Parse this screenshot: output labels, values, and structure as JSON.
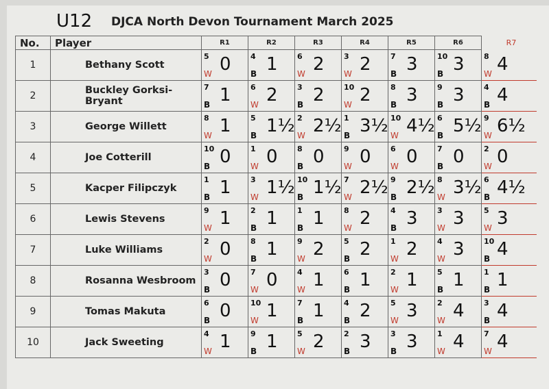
{
  "header": {
    "group": "U12",
    "title": "DJCA North Devon Tournament March 2025"
  },
  "columns": {
    "no": "No.",
    "player": "Player",
    "rounds": [
      "R1",
      "R2",
      "R3",
      "R4",
      "R5",
      "R6",
      "R7"
    ]
  },
  "players": [
    {
      "no": "1",
      "name": "Bethany Scott",
      "results": [
        {
          "opp": "5",
          "col": "W",
          "score": "0"
        },
        {
          "opp": "4",
          "col": "B",
          "score": "1"
        },
        {
          "opp": "6",
          "col": "W",
          "score": "2"
        },
        {
          "opp": "3",
          "col": "W",
          "score": "2"
        },
        {
          "opp": "7",
          "col": "B",
          "score": "3"
        },
        {
          "opp": "10",
          "col": "B",
          "score": "3"
        },
        {
          "opp": "8",
          "col": "W",
          "score": "4"
        }
      ]
    },
    {
      "no": "2",
      "name": "Buckley Gorksi-Bryant",
      "results": [
        {
          "opp": "7",
          "col": "B",
          "score": "1"
        },
        {
          "opp": "6",
          "col": "W",
          "score": "2"
        },
        {
          "opp": "3",
          "col": "B",
          "score": "2"
        },
        {
          "opp": "10",
          "col": "W",
          "score": "2"
        },
        {
          "opp": "8",
          "col": "B",
          "score": "3"
        },
        {
          "opp": "9",
          "col": "B",
          "score": "3"
        },
        {
          "opp": "4",
          "col": "B",
          "score": "4"
        }
      ]
    },
    {
      "no": "3",
      "name": "George Willett",
      "results": [
        {
          "opp": "8",
          "col": "W",
          "score": "1"
        },
        {
          "opp": "5",
          "col": "B",
          "score": "1½"
        },
        {
          "opp": "2",
          "col": "W",
          "score": "2½"
        },
        {
          "opp": "1",
          "col": "B",
          "score": "3½"
        },
        {
          "opp": "10",
          "col": "W",
          "score": "4½"
        },
        {
          "opp": "6",
          "col": "B",
          "score": "5½"
        },
        {
          "opp": "9",
          "col": "W",
          "score": "6½"
        }
      ]
    },
    {
      "no": "4",
      "name": "Joe Cotterill",
      "results": [
        {
          "opp": "10",
          "col": "B",
          "score": "0"
        },
        {
          "opp": "1",
          "col": "W",
          "score": "0"
        },
        {
          "opp": "8",
          "col": "B",
          "score": "0"
        },
        {
          "opp": "9",
          "col": "W",
          "score": "0"
        },
        {
          "opp": "6",
          "col": "W",
          "score": "0"
        },
        {
          "opp": "7",
          "col": "B",
          "score": "0"
        },
        {
          "opp": "2",
          "col": "W",
          "score": "0"
        }
      ]
    },
    {
      "no": "5",
      "name": "Kacper Filipczyk",
      "results": [
        {
          "opp": "1",
          "col": "B",
          "score": "1"
        },
        {
          "opp": "3",
          "col": "W",
          "score": "1½"
        },
        {
          "opp": "10",
          "col": "B",
          "score": "1½"
        },
        {
          "opp": "7",
          "col": "W",
          "score": "2½"
        },
        {
          "opp": "9",
          "col": "B",
          "score": "2½"
        },
        {
          "opp": "8",
          "col": "W",
          "score": "3½"
        },
        {
          "opp": "6",
          "col": "B",
          "score": "4½"
        }
      ]
    },
    {
      "no": "6",
      "name": "Lewis Stevens",
      "results": [
        {
          "opp": "9",
          "col": "W",
          "score": "1"
        },
        {
          "opp": "2",
          "col": "B",
          "score": "1"
        },
        {
          "opp": "1",
          "col": "B",
          "score": "1"
        },
        {
          "opp": "8",
          "col": "W",
          "score": "2"
        },
        {
          "opp": "4",
          "col": "B",
          "score": "3"
        },
        {
          "opp": "3",
          "col": "W",
          "score": "3"
        },
        {
          "opp": "5",
          "col": "W",
          "score": "3"
        }
      ]
    },
    {
      "no": "7",
      "name": "Luke Williams",
      "results": [
        {
          "opp": "2",
          "col": "W",
          "score": "0"
        },
        {
          "opp": "8",
          "col": "B",
          "score": "1"
        },
        {
          "opp": "9",
          "col": "W",
          "score": "2"
        },
        {
          "opp": "5",
          "col": "B",
          "score": "2"
        },
        {
          "opp": "1",
          "col": "W",
          "score": "2"
        },
        {
          "opp": "4",
          "col": "W",
          "score": "3"
        },
        {
          "opp": "10",
          "col": "B",
          "score": "4"
        }
      ]
    },
    {
      "no": "8",
      "name": "Rosanna Wesbroom",
      "results": [
        {
          "opp": "3",
          "col": "B",
          "score": "0"
        },
        {
          "opp": "7",
          "col": "W",
          "score": "0"
        },
        {
          "opp": "4",
          "col": "W",
          "score": "1"
        },
        {
          "opp": "6",
          "col": "B",
          "score": "1"
        },
        {
          "opp": "2",
          "col": "W",
          "score": "1"
        },
        {
          "opp": "5",
          "col": "B",
          "score": "1"
        },
        {
          "opp": "1",
          "col": "B",
          "score": "1"
        }
      ]
    },
    {
      "no": "9",
      "name": "Tomas Makuta",
      "results": [
        {
          "opp": "6",
          "col": "B",
          "score": "0"
        },
        {
          "opp": "10",
          "col": "W",
          "score": "1"
        },
        {
          "opp": "7",
          "col": "B",
          "score": "1"
        },
        {
          "opp": "4",
          "col": "B",
          "score": "2"
        },
        {
          "opp": "5",
          "col": "W",
          "score": "3"
        },
        {
          "opp": "2",
          "col": "W",
          "score": "4"
        },
        {
          "opp": "3",
          "col": "B",
          "score": "4"
        }
      ]
    },
    {
      "no": "10",
      "name": "Jack Sweeting",
      "results": [
        {
          "opp": "4",
          "col": "W",
          "score": "1"
        },
        {
          "opp": "9",
          "col": "B",
          "score": "1"
        },
        {
          "opp": "5",
          "col": "W",
          "score": "2"
        },
        {
          "opp": "2",
          "col": "B",
          "score": "3"
        },
        {
          "opp": "3",
          "col": "B",
          "score": "3"
        },
        {
          "opp": "1",
          "col": "W",
          "score": "4"
        },
        {
          "opp": "7",
          "col": "W",
          "score": "4"
        }
      ]
    }
  ],
  "colors": {
    "white_marker": "#c0392b",
    "black_marker": "#111111",
    "r7_header": "#c0392b"
  }
}
